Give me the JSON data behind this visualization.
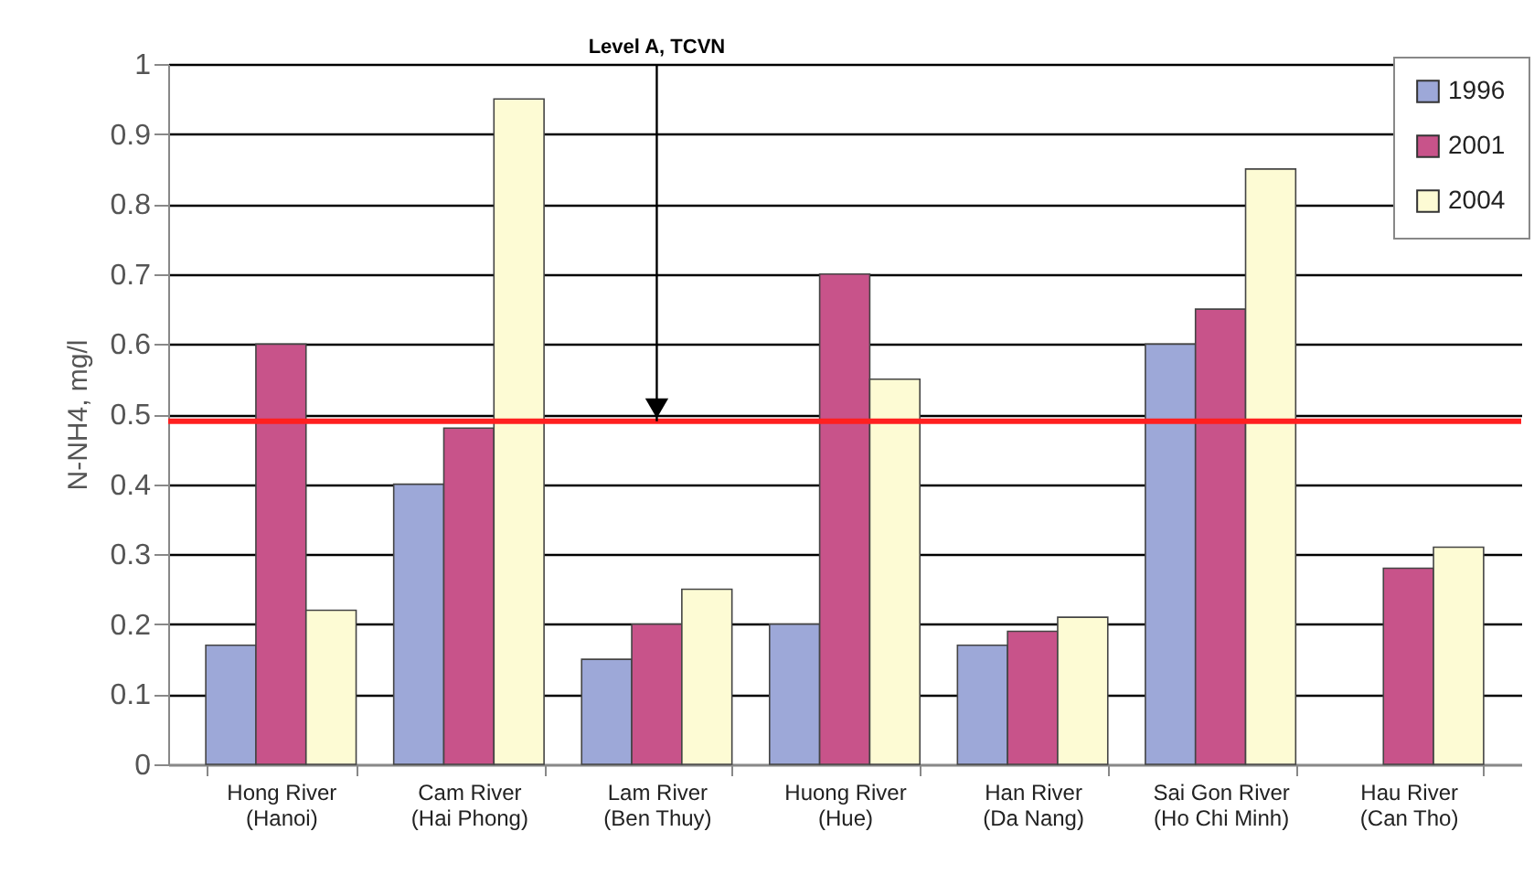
{
  "chart_data": {
    "type": "bar",
    "ylabel": "N-NH4, mg/l",
    "categories": [
      "Hong River (Hanoi)",
      "Cam River (Hai Phong)",
      "Lam River (Ben Thuy)",
      "Huong River (Hue)",
      "Han River (Da Nang)",
      "Sai Gon River (Ho Chi Minh)",
      "Hau River (Can Tho)"
    ],
    "series": [
      {
        "name": "1996",
        "color": "#9da8d8",
        "values": [
          0.17,
          0.4,
          0.15,
          0.2,
          0.17,
          0.6,
          null
        ]
      },
      {
        "name": "2001",
        "color": "#c8538a",
        "values": [
          0.6,
          0.48,
          0.2,
          0.7,
          0.19,
          0.65,
          0.28
        ]
      },
      {
        "name": "2004",
        "color": "#fdfbd4",
        "values": [
          0.22,
          0.95,
          0.25,
          0.55,
          0.21,
          0.85,
          0.31
        ]
      }
    ],
    "ylim": [
      0,
      1
    ],
    "yticks": [
      0,
      0.1,
      0.2,
      0.3,
      0.4,
      0.5,
      0.6,
      0.7,
      0.8,
      0.9,
      1
    ],
    "grid": "y",
    "legend": "top right",
    "ref_lines": [
      {
        "axis": "y",
        "value": 0.49,
        "color": "#ff2020"
      }
    ],
    "annotations": [
      {
        "text": "Level A, TCVN",
        "x": "Lam River (Ben Thuy)",
        "y": 0.49
      }
    ]
  }
}
